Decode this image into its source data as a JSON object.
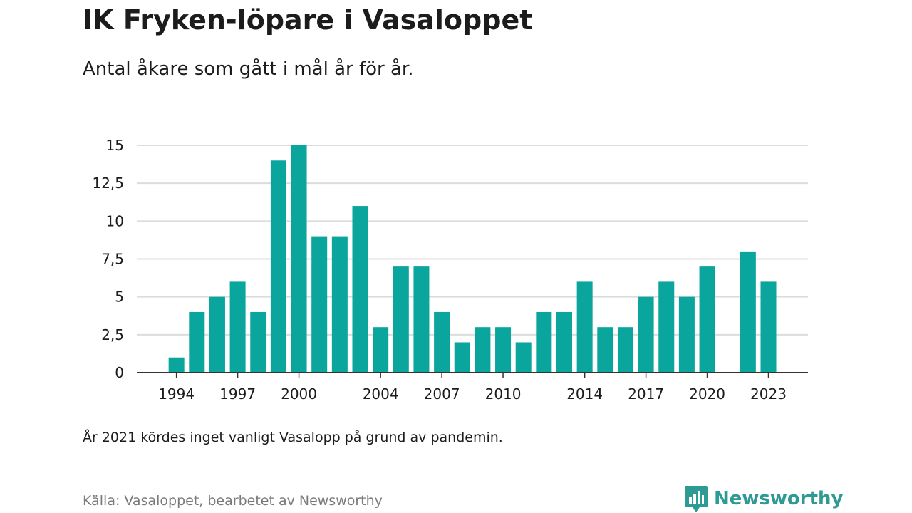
{
  "header": {
    "title": "IK Fryken-löpare i Vasaloppet",
    "subtitle": "Antal åkare som gått i mål år för år."
  },
  "footer": {
    "note": "År 2021 kördes inget vanligt Vasalopp på grund av pandemin.",
    "source": "Källa: Vasaloppet, bearbetet av Newsworthy",
    "brand": "Newsworthy"
  },
  "colors": {
    "bar": "#0aa59c",
    "grid": "#dcdcdc",
    "axis": "#333333",
    "brand": "#2e9a94"
  },
  "icons": {
    "brand_logo": "bar-chart-badge-icon"
  },
  "chart_data": {
    "type": "bar",
    "title": "IK Fryken-löpare i Vasaloppet",
    "subtitle": "Antal åkare som gått i mål år för år.",
    "xlabel": "",
    "ylabel": "",
    "x": [
      1993,
      1994,
      1995,
      1996,
      1997,
      1998,
      1999,
      2000,
      2001,
      2002,
      2003,
      2004,
      2005,
      2006,
      2007,
      2008,
      2009,
      2010,
      2011,
      2012,
      2013,
      2014,
      2015,
      2016,
      2017,
      2018,
      2019,
      2020,
      2021,
      2022,
      2023
    ],
    "values": [
      null,
      1,
      4,
      5,
      6,
      4,
      14,
      15,
      9,
      9,
      11,
      3,
      7,
      7,
      4,
      2,
      3,
      3,
      2,
      4,
      4,
      6,
      3,
      3,
      5,
      6,
      5,
      7,
      null,
      8,
      6
    ],
    "ylim": [
      0,
      15
    ],
    "y_ticks": [
      {
        "value": 0,
        "label": "0"
      },
      {
        "value": 2.5,
        "label": "2,5"
      },
      {
        "value": 5,
        "label": "5"
      },
      {
        "value": 7.5,
        "label": "7,5"
      },
      {
        "value": 10,
        "label": "10"
      },
      {
        "value": 12.5,
        "label": "12,5"
      },
      {
        "value": 15,
        "label": "15"
      }
    ],
    "x_ticks": [
      {
        "value": 1994,
        "label": "1994"
      },
      {
        "value": 1997,
        "label": "1997"
      },
      {
        "value": 2000,
        "label": "2000"
      },
      {
        "value": 2004,
        "label": "2004"
      },
      {
        "value": 2007,
        "label": "2007"
      },
      {
        "value": 2010,
        "label": "2010"
      },
      {
        "value": 2014,
        "label": "2014"
      },
      {
        "value": 2017,
        "label": "2017"
      },
      {
        "value": 2020,
        "label": "2020"
      },
      {
        "value": 2023,
        "label": "2023"
      }
    ],
    "grid": true,
    "legend": "none"
  }
}
